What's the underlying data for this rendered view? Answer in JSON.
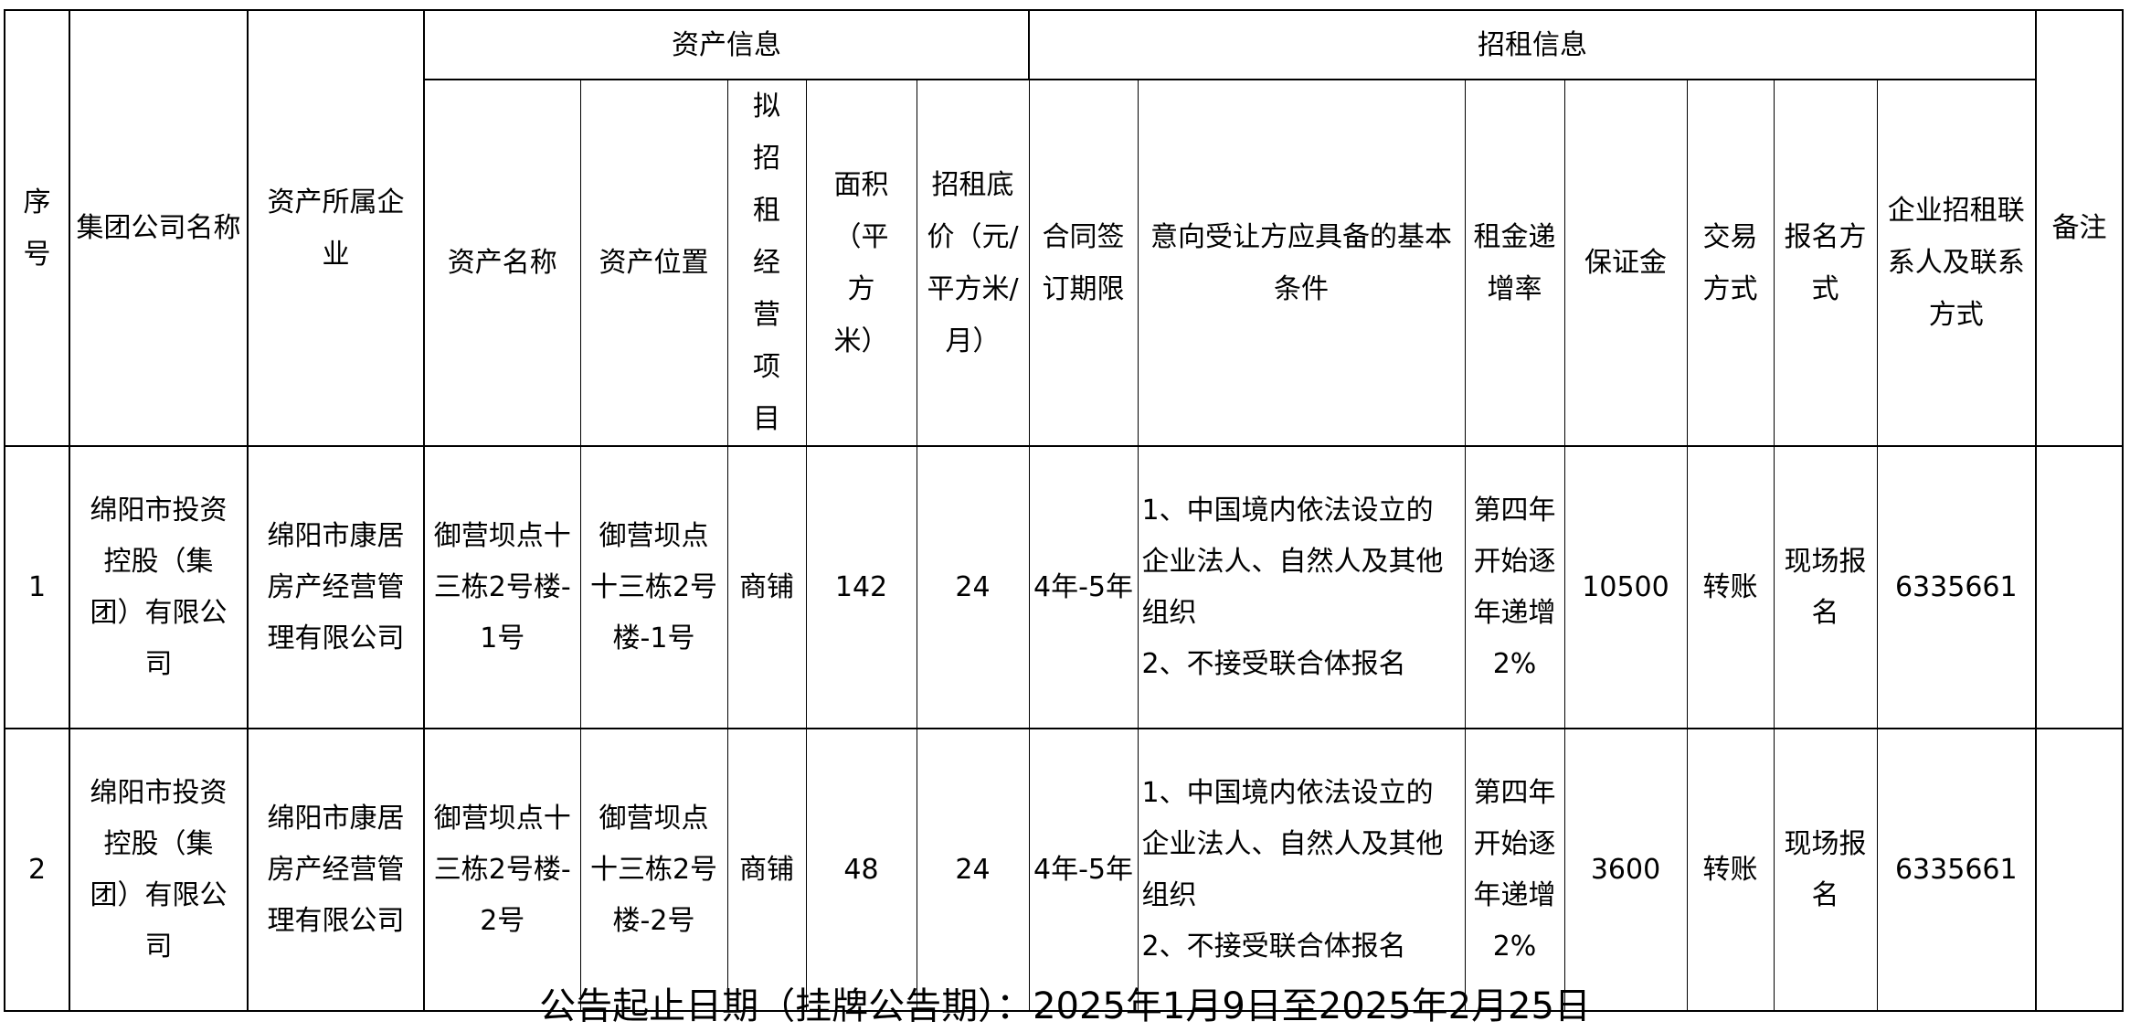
{
  "headers": {
    "index": "序号",
    "group_company": "集团公司名称",
    "owner_company": "资产所属企业",
    "asset_info": "资产信息",
    "lease_info": "招租信息",
    "remark": "备注",
    "asset_name": "资产名称",
    "asset_location": "资产位置",
    "business_item": "拟招租经营项目",
    "area": "面积（平方米）",
    "base_price": "招租底价（元/平方米/月）",
    "contract_term": "合同签订期限",
    "conditions": "意向受让方应具备的基本条件",
    "rent_increase": "租金递增率",
    "deposit": "保证金",
    "payment_method": "交易方式",
    "registration": "报名方式",
    "contact": "企业招租联系人及联系方式"
  },
  "rows": [
    {
      "index": "1",
      "group_company": "绵阳市投资控股（集团）有限公司",
      "owner_company": "绵阳市康居房产经营管理有限公司",
      "asset_name": "御营坝点十三栋2号楼-1号",
      "asset_location": "御营坝点十三栋2号楼-1号",
      "business_item": "商铺",
      "area": "142",
      "base_price": "24",
      "contract_term": "4年-5年",
      "conditions": [
        "1、中国境内依法设立的企业法人、自然人及其他组织",
        "2、不接受联合体报名"
      ],
      "rent_increase": "第四年开始逐年递增2%",
      "deposit": "10500",
      "payment_method": "转账",
      "registration": "现场报名",
      "contact": "6335661",
      "remark": ""
    },
    {
      "index": "2",
      "group_company": "绵阳市投资控股（集团）有限公司",
      "owner_company": "绵阳市康居房产经营管理有限公司",
      "asset_name": "御营坝点十三栋2号楼-2号",
      "asset_location": "御营坝点十三栋2号楼-2号",
      "business_item": "商铺",
      "area": "48",
      "base_price": "24",
      "contract_term": "4年-5年",
      "conditions": [
        "1、中国境内依法设立的企业法人、自然人及其他组织",
        "2、不接受联合体报名"
      ],
      "rent_increase": "第四年开始逐年递增2%",
      "deposit": "3600",
      "payment_method": "转账",
      "registration": "现场报名",
      "contact": "6335661",
      "remark": ""
    }
  ],
  "footer": "公告起止日期（挂牌公告期）：2025年1月9日至2025年2月25日"
}
